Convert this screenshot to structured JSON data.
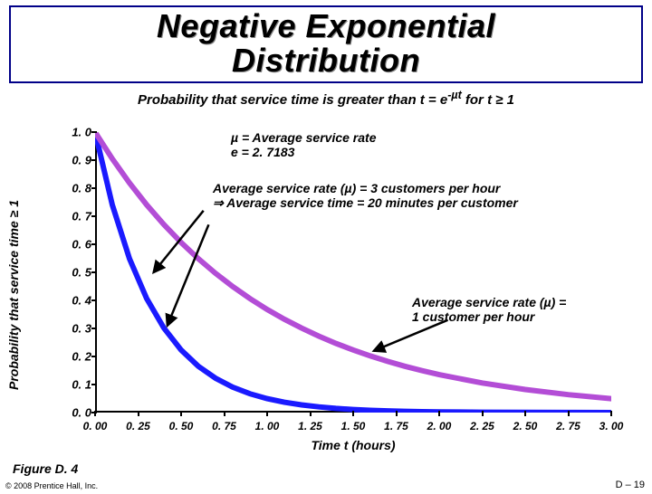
{
  "title": "Negative Exponential\nDistribution",
  "subtitle_prefix": "Probability that service time is greater than t = e",
  "subtitle_exp": "-µt",
  "subtitle_suffix": " for t ≥ 1",
  "mu_line": "µ = Average service rate",
  "e_line": "e = 2. 7183",
  "annot1_line1": "Average service rate (µ) = 3 customers per hour",
  "annot1_line2": "⇒ Average service time = 20 minutes per customer",
  "annot2_line1": "Average service rate (µ) =",
  "annot2_line2": "1 customer per hour",
  "xaxis_label": "Time t (hours)",
  "yaxis_label": "Probability that service time ≥ 1",
  "figure_label": "Figure D. 4",
  "copyright": "© 2008 Prentice Hall, Inc.",
  "slide_number": "D – 19",
  "chart": {
    "type": "line",
    "background_color": "#ffffff",
    "xlim": [
      0,
      3.0
    ],
    "ylim": [
      0,
      1.0
    ],
    "xtick_labels": [
      "0. 00",
      "0. 25",
      "0. 50",
      "0. 75",
      "1. 00",
      "1. 25",
      "1. 50",
      "1. 75",
      "2. 00",
      "2. 25",
      "2. 50",
      "2. 75",
      "3. 00"
    ],
    "xtick_values": [
      0,
      0.25,
      0.5,
      0.75,
      1.0,
      1.25,
      1.5,
      1.75,
      2.0,
      2.25,
      2.5,
      2.75,
      3.0
    ],
    "ytick_labels": [
      "0. 0",
      "0. 1",
      "0. 2",
      "0. 3",
      "0. 4",
      "0. 5",
      "0. 6",
      "0. 7",
      "0. 8",
      "0. 9",
      "1. 0"
    ],
    "ytick_values": [
      0,
      0.1,
      0.2,
      0.3,
      0.4,
      0.5,
      0.6,
      0.7,
      0.8,
      0.9,
      1.0
    ],
    "series": [
      {
        "name": "mu3",
        "mu": 3,
        "color": "#1a1aff",
        "stroke_width": 6,
        "xs": [
          0,
          0.1,
          0.2,
          0.3,
          0.4,
          0.5,
          0.6,
          0.7,
          0.8,
          0.9,
          1.0,
          1.1,
          1.2,
          1.3,
          1.4,
          1.5,
          1.6,
          1.7,
          1.8,
          1.9,
          2.0,
          2.25,
          2.5,
          2.75,
          3.0
        ],
        "ys": [
          1.0,
          0.7408,
          0.5488,
          0.4066,
          0.3012,
          0.2231,
          0.1653,
          0.1225,
          0.0907,
          0.0672,
          0.0498,
          0.0369,
          0.0273,
          0.0202,
          0.015,
          0.0111,
          0.0082,
          0.0061,
          0.0045,
          0.0033,
          0.0025,
          0.0012,
          0.00055,
          0.00026,
          0.00012
        ]
      },
      {
        "name": "mu1",
        "mu": 1,
        "color": "#b34dd6",
        "stroke_width": 6,
        "xs": [
          0,
          0.1,
          0.2,
          0.3,
          0.4,
          0.5,
          0.6,
          0.7,
          0.8,
          0.9,
          1.0,
          1.1,
          1.2,
          1.3,
          1.4,
          1.5,
          1.6,
          1.7,
          1.8,
          1.9,
          2.0,
          2.25,
          2.5,
          2.75,
          3.0
        ],
        "ys": [
          1.0,
          0.9048,
          0.8187,
          0.7408,
          0.6703,
          0.6065,
          0.5488,
          0.4966,
          0.4493,
          0.4066,
          0.3679,
          0.3329,
          0.3012,
          0.2725,
          0.2466,
          0.2231,
          0.2019,
          0.1827,
          0.1653,
          0.1496,
          0.1353,
          0.1054,
          0.0821,
          0.0639,
          0.0498
        ]
      }
    ],
    "arrows": [
      {
        "from": [
          0.63,
          0.72
        ],
        "to": [
          0.34,
          0.5
        ],
        "color": "#000000"
      },
      {
        "from": [
          0.66,
          0.67
        ],
        "to": [
          0.42,
          0.31
        ],
        "color": "#000000"
      },
      {
        "from": [
          2.05,
          0.33
        ],
        "to": [
          1.62,
          0.22
        ],
        "color": "#000000"
      }
    ],
    "tick_font_size": 12,
    "label_font_size": 14,
    "axis_color": "#000000"
  }
}
